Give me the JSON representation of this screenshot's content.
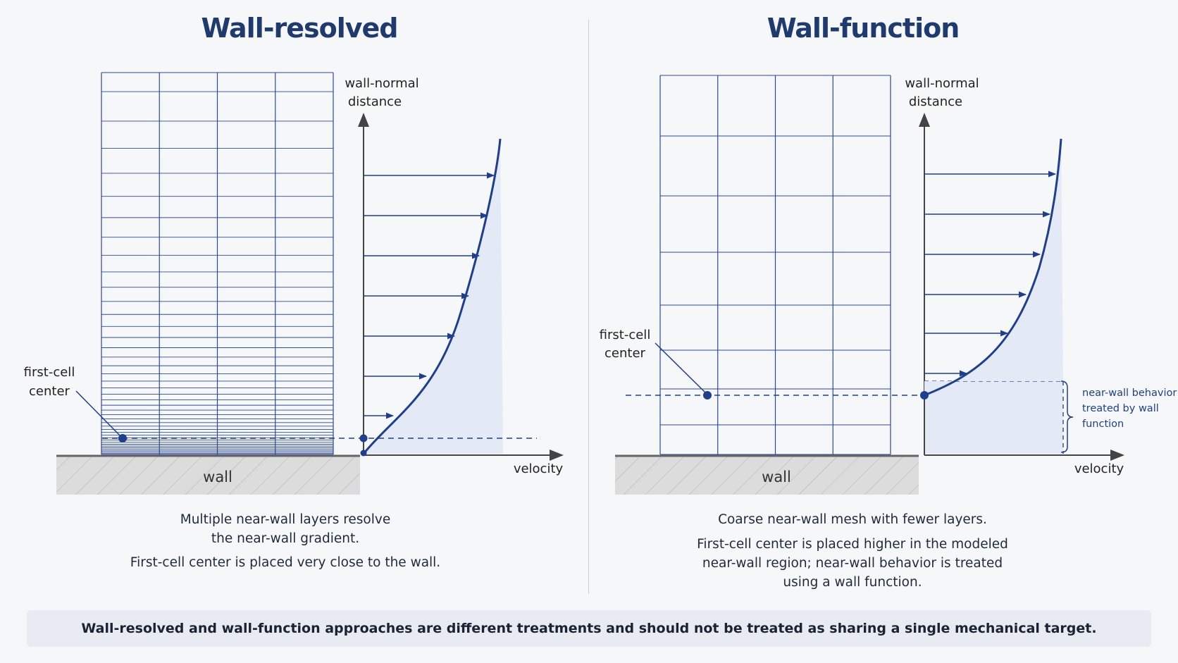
{
  "left": {
    "title": "Wall-resolved",
    "axis_y_label_1": "wall-normal",
    "axis_y_label_2": "distance",
    "axis_x_label": "velocity",
    "first_cell_label_1": "first-cell",
    "first_cell_label_2": "center",
    "wall_label": "wall",
    "caption_1": "Multiple near-wall layers resolve",
    "caption_2": "the near-wall gradient.",
    "caption_3": "First-cell center is placed very close to the wall."
  },
  "right": {
    "title": "Wall-function",
    "axis_y_label_1": "wall-normal",
    "axis_y_label_2": "distance",
    "axis_x_label": "velocity",
    "first_cell_label_1": "first-cell",
    "first_cell_label_2": "center",
    "wall_label": "wall",
    "bracket_label_1": "near-wall behavior",
    "bracket_label_2": "treated by wall",
    "bracket_label_3": "function",
    "caption_1": "Coarse near-wall mesh with fewer layers.",
    "caption_2": "First-cell center is placed higher in the modeled",
    "caption_3": "near-wall region; near-wall behavior is treated",
    "caption_4": "using a wall function."
  },
  "footer": "Wall-resolved and wall-function approaches are different treatments and should not be treated as sharing a single mechanical target.",
  "colors": {
    "accent": "#1e3f8f",
    "mesh": "#2c4a9a",
    "fill": "#e3eaf6",
    "wall": "#d9d9d9"
  }
}
